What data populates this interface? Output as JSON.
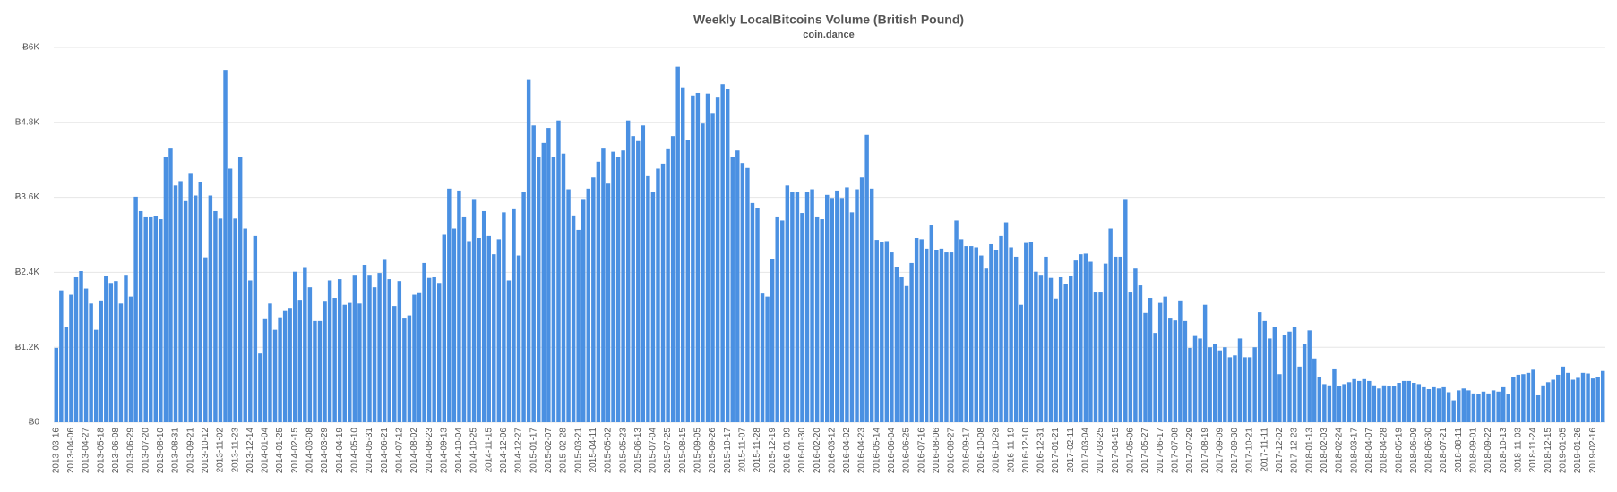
{
  "chart_data": {
    "type": "bar",
    "title": "Weekly LocalBitcoins Volume (British Pound)",
    "subtitle": "coin.dance",
    "color": "#4a90e2",
    "grid": true,
    "ylim": [
      0,
      6000
    ],
    "yticks": [
      {
        "value": 0,
        "label": "Ƀ0"
      },
      {
        "value": 1200,
        "label": "Ƀ1.2K"
      },
      {
        "value": 2400,
        "label": "Ƀ2.4K"
      },
      {
        "value": 3600,
        "label": "Ƀ3.6K"
      },
      {
        "value": 4800,
        "label": "Ƀ4.8K"
      },
      {
        "value": 6000,
        "label": "Ƀ6K"
      }
    ],
    "categories": [
      "2013-03-16",
      null,
      null,
      "2013-04-06",
      null,
      null,
      "2013-04-27",
      null,
      null,
      "2013-05-18",
      null,
      null,
      "2013-06-08",
      null,
      null,
      "2013-06-29",
      null,
      null,
      "2013-07-20",
      null,
      null,
      "2013-08-10",
      null,
      null,
      "2013-08-31",
      null,
      null,
      "2013-09-21",
      null,
      null,
      "2013-10-12",
      null,
      null,
      "2013-11-02",
      null,
      null,
      "2013-11-23",
      null,
      null,
      "2013-12-14",
      null,
      null,
      "2014-01-04",
      null,
      null,
      "2014-01-25",
      null,
      null,
      "2014-02-15",
      null,
      null,
      "2014-03-08",
      null,
      null,
      "2014-03-29",
      null,
      null,
      "2014-04-19",
      null,
      null,
      "2014-05-10",
      null,
      null,
      "2014-05-31",
      null,
      null,
      "2014-06-21",
      null,
      null,
      "2014-07-12",
      null,
      null,
      "2014-08-02",
      null,
      null,
      "2014-08-23",
      null,
      null,
      "2014-09-13",
      null,
      null,
      "2014-10-04",
      null,
      null,
      "2014-10-25",
      null,
      null,
      "2014-11-15",
      null,
      null,
      "2014-12-06",
      null,
      null,
      "2014-12-27",
      null,
      null,
      "2015-01-17",
      null,
      null,
      "2015-02-07",
      null,
      null,
      "2015-02-28",
      null,
      null,
      "2015-03-21",
      null,
      null,
      "2015-04-11",
      null,
      null,
      "2015-05-02",
      null,
      null,
      "2015-05-23",
      null,
      null,
      "2015-06-13",
      null,
      null,
      "2015-07-04",
      null,
      null,
      "2015-07-25",
      null,
      null,
      "2015-08-15",
      null,
      null,
      "2015-09-05",
      null,
      null,
      "2015-09-26",
      null,
      null,
      "2015-10-17",
      null,
      null,
      "2015-11-07",
      null,
      null,
      "2015-11-28",
      null,
      null,
      "2015-12-19",
      null,
      null,
      "2016-01-09",
      null,
      null,
      "2016-01-30",
      null,
      null,
      "2016-02-20",
      null,
      null,
      "2016-03-12",
      null,
      null,
      "2016-04-02",
      null,
      null,
      "2016-04-23",
      null,
      null,
      "2016-05-14",
      null,
      null,
      "2016-06-04",
      null,
      null,
      "2016-06-25",
      null,
      null,
      "2016-07-16",
      null,
      null,
      "2016-08-06",
      null,
      null,
      "2016-08-27",
      null,
      null,
      "2016-09-17",
      null,
      null,
      "2016-10-08",
      null,
      null,
      "2016-10-29",
      null,
      null,
      "2016-11-19",
      null,
      null,
      "2016-12-10",
      null,
      null,
      "2016-12-31",
      null,
      null,
      "2017-01-21",
      null,
      null,
      "2017-02-11",
      null,
      null,
      "2017-03-04",
      null,
      null,
      "2017-03-25",
      null,
      null,
      "2017-04-15",
      null,
      null,
      "2017-05-06",
      null,
      null,
      "2017-05-27",
      null,
      null,
      "2017-06-17",
      null,
      null,
      "2017-07-08",
      null,
      null,
      "2017-07-29",
      null,
      null,
      "2017-08-19",
      null,
      null,
      "2017-09-09",
      null,
      null,
      "2017-09-30",
      null,
      null,
      "2017-10-21",
      null,
      null,
      "2017-11-11",
      null,
      null,
      "2017-12-02",
      null,
      null,
      "2017-12-23",
      null,
      null,
      "2018-01-13",
      null,
      null,
      "2018-02-03",
      null,
      null,
      "2018-02-24",
      null,
      null,
      "2018-03-17",
      null,
      null,
      "2018-04-07",
      null,
      null,
      "2018-04-28",
      null,
      null,
      "2018-05-19",
      null,
      null,
      "2018-06-09",
      null,
      null,
      "2018-06-30",
      null,
      null,
      "2018-07-21",
      null,
      null,
      "2018-08-11",
      null,
      null,
      "2018-09-01",
      null,
      null,
      "2018-09-22",
      null,
      null,
      "2018-10-13",
      null,
      null,
      "2018-11-03",
      null,
      null,
      "2018-11-24",
      null,
      null,
      "2018-12-15",
      null,
      null,
      "2019-01-05",
      null,
      null,
      "2019-01-26",
      null,
      null,
      "2019-02-16",
      null,
      null
    ],
    "values": [
      1190,
      2110,
      1520,
      2040,
      2320,
      2420,
      2140,
      1900,
      1480,
      1950,
      2340,
      2230,
      2260,
      1900,
      2360,
      2010,
      3610,
      3380,
      3280,
      3280,
      3300,
      3250,
      4240,
      4380,
      3790,
      3860,
      3540,
      3990,
      3630,
      3840,
      2640,
      3630,
      3380,
      3260,
      5640,
      4060,
      3260,
      4240,
      3100,
      2270,
      2980,
      1100,
      1650,
      1900,
      1480,
      1680,
      1780,
      1830,
      2410,
      1960,
      2470,
      2160,
      1620,
      1620,
      1930,
      2270,
      1990,
      2290,
      1880,
      1910,
      2360,
      1900,
      2520,
      2360,
      2160,
      2390,
      2600,
      2290,
      1860,
      2260,
      1660,
      1710,
      2040,
      2080,
      2550,
      2310,
      2320,
      2230,
      3000,
      3740,
      3100,
      3710,
      3280,
      2900,
      3560,
      2950,
      3380,
      2980,
      2690,
      2930,
      3360,
      2270,
      3410,
      2670,
      3680,
      5490,
      4750,
      4250,
      4470,
      4710,
      4250,
      4830,
      4300,
      3730,
      3310,
      3080,
      3560,
      3740,
      3920,
      4170,
      4380,
      3820,
      4330,
      4250,
      4350,
      4830,
      4580,
      4500,
      4750,
      3940,
      3680,
      4060,
      4140,
      4370,
      4580,
      5690,
      5360,
      4520,
      5230,
      5270,
      4780,
      5260,
      4950,
      5210,
      5410,
      5340,
      4240,
      4350,
      4150,
      4070,
      3510,
      3430,
      2060,
      2010,
      2620,
      3280,
      3230,
      3790,
      3680,
      3680,
      3350,
      3680,
      3730,
      3280,
      3250,
      3640,
      3590,
      3710,
      3590,
      3760,
      3360,
      3730,
      3920,
      4600,
      3740,
      2920,
      2880,
      2900,
      2720,
      2490,
      2320,
      2180,
      2550,
      2950,
      2930,
      2780,
      3150,
      2750,
      2780,
      2720,
      2720,
      3230,
      2930,
      2820,
      2820,
      2800,
      2670,
      2460,
      2850,
      2750,
      2980,
      3200,
      2800,
      2650,
      1880,
      2870,
      2880,
      2410,
      2360,
      2650,
      2310,
      1980,
      2320,
      2210,
      2340,
      2590,
      2690,
      2700,
      2570,
      2090,
      2090,
      2540,
      3100,
      2650,
      2650,
      3560,
      2090,
      2460,
      2190,
      1750,
      1990,
      1430,
      1910,
      2010,
      1660,
      1630,
      1950,
      1620,
      1190,
      1380,
      1340,
      1880,
      1200,
      1250,
      1150,
      1200,
      1040,
      1070,
      1340,
      1040,
      1040,
      1200,
      1760,
      1620,
      1340,
      1520,
      770,
      1400,
      1450,
      1530,
      890,
      1250,
      1470,
      1020,
      730,
      610,
      590,
      860,
      580,
      610,
      640,
      690,
      660,
      690,
      660,
      590,
      540,
      590,
      580,
      580,
      630,
      660,
      660,
      630,
      610,
      560,
      530,
      560,
      540,
      560,
      480,
      350,
      510,
      540,
      510,
      460,
      450,
      490,
      460,
      510,
      490,
      560,
      450,
      730,
      760,
      770,
      790,
      840,
      430,
      590,
      640,
      680,
      760,
      890,
      790,
      680,
      710,
      790,
      780,
      700,
      720,
      820
    ]
  }
}
